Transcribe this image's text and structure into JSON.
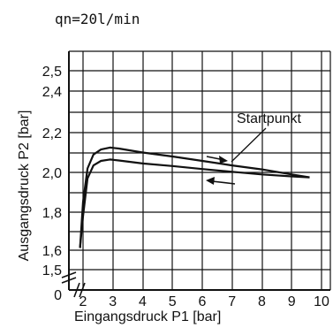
{
  "header": {
    "flow_label": "qn=20l/min"
  },
  "chart_data": {
    "type": "line",
    "title": "",
    "xlabel": "Eingangsdruck P1 [bar]",
    "ylabel": "Ausgangsdruck P2 [bar]",
    "xlim": [
      1.8,
      10.4
    ],
    "x_ticks": [
      "2",
      "3",
      "4",
      "5",
      "6",
      "7",
      "8",
      "9",
      "10"
    ],
    "y_ticks": [
      "0",
      "1,5",
      "1,6",
      "1,8",
      "2,0",
      "2,2",
      "2,4",
      "2,5"
    ],
    "axis_break": true,
    "grid": true,
    "annotation": "Startpunkt",
    "series": [
      {
        "direction": "increasing",
        "points": [
          [
            1.9,
            1.62
          ],
          [
            2.0,
            1.85
          ],
          [
            2.15,
            2.02
          ],
          [
            2.35,
            2.09
          ],
          [
            2.6,
            2.115
          ],
          [
            2.9,
            2.125
          ],
          [
            3.2,
            2.12
          ],
          [
            4,
            2.1
          ],
          [
            5,
            2.08
          ],
          [
            6,
            2.058
          ],
          [
            7,
            2.035
          ],
          [
            8,
            2.015
          ],
          [
            9,
            1.99
          ],
          [
            9.6,
            1.975
          ]
        ]
      },
      {
        "direction": "decreasing",
        "points": [
          [
            9.6,
            1.975
          ],
          [
            9,
            1.98
          ],
          [
            8,
            1.99
          ],
          [
            7,
            2.003
          ],
          [
            6,
            2.017
          ],
          [
            5,
            2.032
          ],
          [
            4,
            2.045
          ],
          [
            3.2,
            2.06
          ],
          [
            2.9,
            2.065
          ],
          [
            2.6,
            2.058
          ],
          [
            2.35,
            2.035
          ],
          [
            2.15,
            1.97
          ],
          [
            2.0,
            1.78
          ],
          [
            1.9,
            1.62
          ]
        ]
      }
    ]
  }
}
